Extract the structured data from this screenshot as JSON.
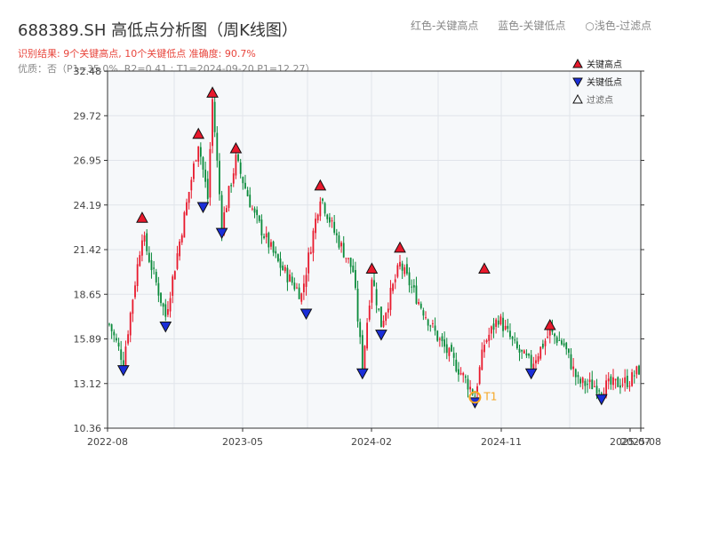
{
  "header": {
    "title": "688389.SH 高低点分析图（周K线图）",
    "legend_hint": [
      "红色-关键高点",
      "蓝色-关键低点",
      "○浅色-过滤点"
    ],
    "result": "识别结果: 9个关键高点, 10个关键低点   准确度: 90.7%",
    "quality": "优质：否（P1=35.0%, R2=0.41 ; T1=2024-09-20 P1=12.27）"
  },
  "colors": {
    "up": "#e8192c",
    "down": "#0a8a3a",
    "high_marker": "#e8192c",
    "low_marker": "#1a2ed8",
    "t1_marker": "#f5a623",
    "plot_bg": "#f6f8fa",
    "grid": "#e0e4ea"
  },
  "chart_data": {
    "type": "candlestick",
    "title": "688389.SH 高低点分析图（周K线图）",
    "ylim": [
      10.36,
      32.48
    ],
    "y_ticks": [
      "32.48",
      "29.72",
      "26.95",
      "24.19",
      "21.42",
      "18.65",
      "15.89",
      "13.12",
      "10.36"
    ],
    "x_ticks": [
      "2022-08",
      "2023-05",
      "2024-02",
      "2024-11",
      "2025-07",
      "2025-08"
    ],
    "grid": true,
    "legend": {
      "position": "top-right",
      "entries": [
        {
          "label": "关键高点",
          "marker": "triangle-up",
          "color": "#e8192c"
        },
        {
          "label": "关键低点",
          "marker": "triangle-down",
          "color": "#1a2ed8"
        },
        {
          "label": "过滤点",
          "marker": "triangle-up-hollow",
          "color": "#333333"
        }
      ]
    },
    "anchors": [
      {
        "x": 0,
        "y": 16.8
      },
      {
        "x": 6,
        "y": 14.5
      },
      {
        "x": 14,
        "y": 22.4
      },
      {
        "x": 24,
        "y": 17.3
      },
      {
        "x": 38,
        "y": 28.1
      },
      {
        "x": 42,
        "y": 24.6
      },
      {
        "x": 44,
        "y": 30.7
      },
      {
        "x": 48,
        "y": 22.9
      },
      {
        "x": 54,
        "y": 27.0
      },
      {
        "x": 62,
        "y": 23.5
      },
      {
        "x": 72,
        "y": 20.6
      },
      {
        "x": 82,
        "y": 18.6
      },
      {
        "x": 90,
        "y": 24.8
      },
      {
        "x": 96,
        "y": 22.5
      },
      {
        "x": 104,
        "y": 20.1
      },
      {
        "x": 108,
        "y": 14.2
      },
      {
        "x": 112,
        "y": 19.8
      },
      {
        "x": 116,
        "y": 16.8
      },
      {
        "x": 124,
        "y": 20.5
      },
      {
        "x": 132,
        "y": 18.2
      },
      {
        "x": 140,
        "y": 16.0
      },
      {
        "x": 150,
        "y": 13.8
      },
      {
        "x": 156,
        "y": 12.4
      },
      {
        "x": 160,
        "y": 15.6
      },
      {
        "x": 166,
        "y": 17.2
      },
      {
        "x": 174,
        "y": 15.2
      },
      {
        "x": 180,
        "y": 14.3
      },
      {
        "x": 188,
        "y": 16.3
      },
      {
        "x": 194,
        "y": 15.5
      },
      {
        "x": 200,
        "y": 13.2
      },
      {
        "x": 210,
        "y": 12.9
      },
      {
        "x": 222,
        "y": 13.3
      },
      {
        "x": 226,
        "y": 14.0
      }
    ],
    "key_highs": [
      {
        "x": 14,
        "y": 22.95
      },
      {
        "x": 38,
        "y": 28.15
      },
      {
        "x": 44,
        "y": 30.7
      },
      {
        "x": 54,
        "y": 27.25
      },
      {
        "x": 90,
        "y": 24.95
      },
      {
        "x": 112,
        "y": 19.8
      },
      {
        "x": 124,
        "y": 21.1
      },
      {
        "x": 160,
        "y": 19.8
      },
      {
        "x": 188,
        "y": 16.3
      }
    ],
    "key_lows": [
      {
        "x": 6,
        "y": 14.4
      },
      {
        "x": 24,
        "y": 17.1
      },
      {
        "x": 40,
        "y": 24.5
      },
      {
        "x": 48,
        "y": 22.9
      },
      {
        "x": 84,
        "y": 17.9
      },
      {
        "x": 108,
        "y": 14.2
      },
      {
        "x": 116,
        "y": 16.6
      },
      {
        "x": 156,
        "y": 12.4
      },
      {
        "x": 180,
        "y": 14.2
      },
      {
        "x": 210,
        "y": 12.6
      }
    ],
    "t1": {
      "x": 156,
      "y": 12.27,
      "label": "T1"
    },
    "x_count": 226
  }
}
